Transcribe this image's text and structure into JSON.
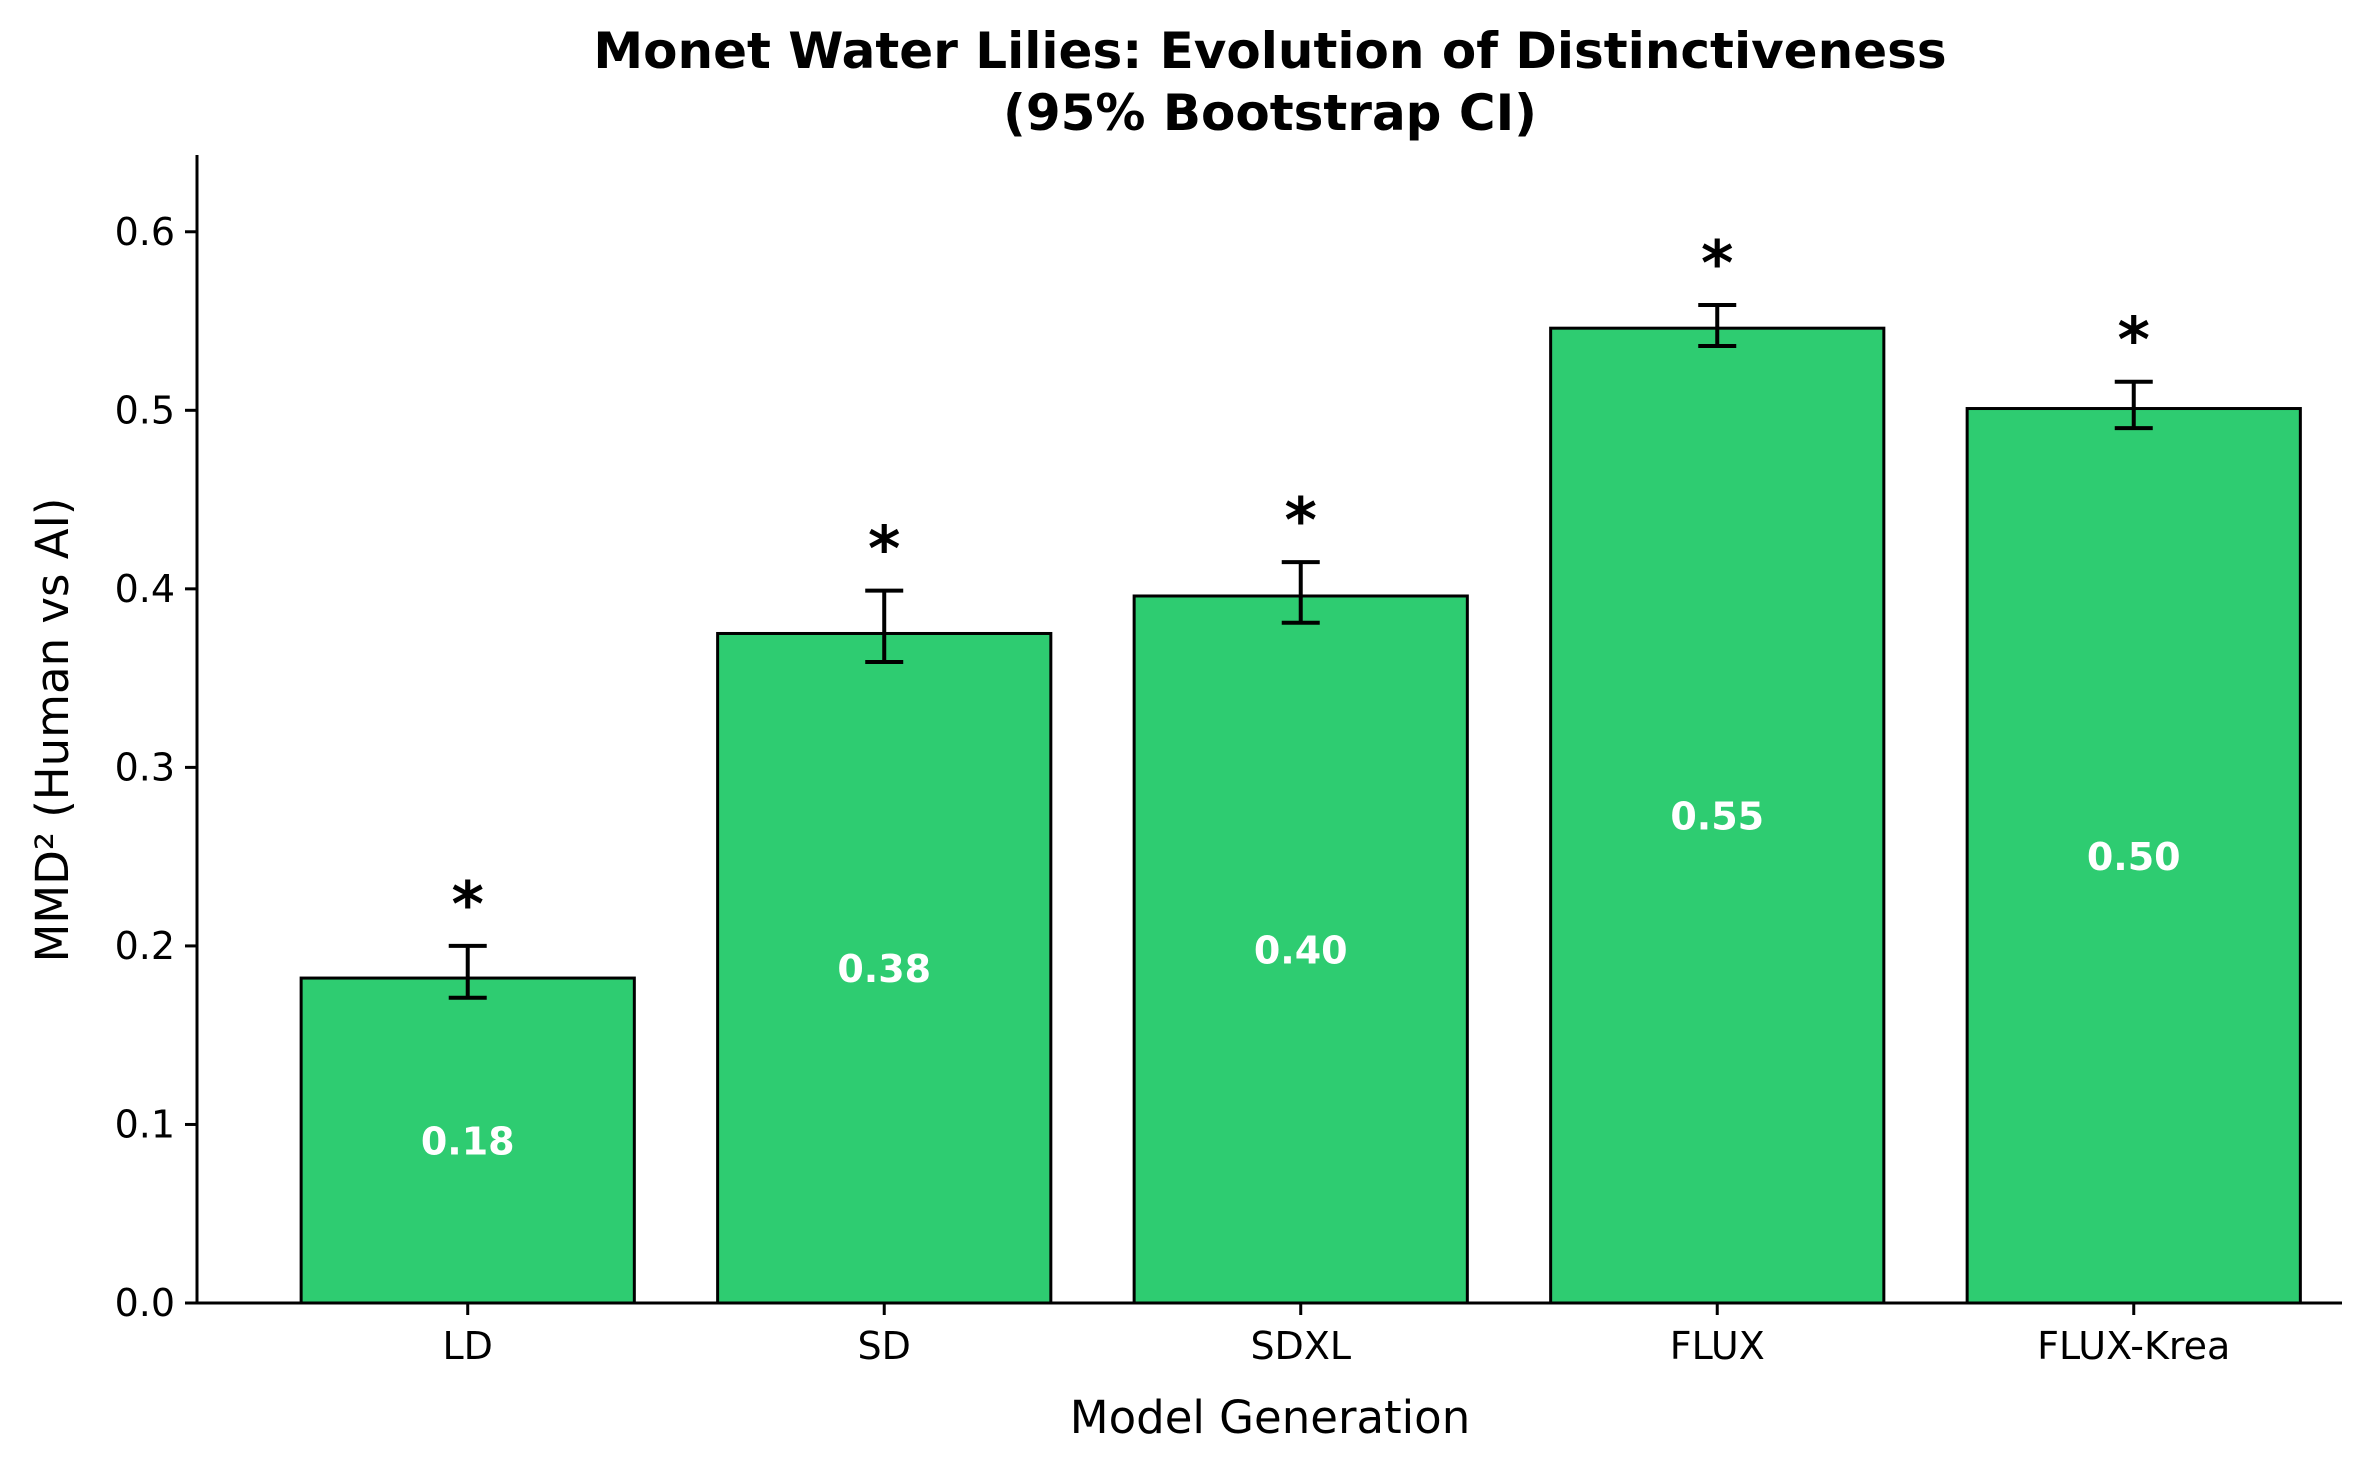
{
  "chart_data": {
    "type": "bar",
    "title": "Monet Water Lilies: Evolution of Distinctiveness",
    "subtitle": "(95% Bootstrap CI)",
    "xlabel": "Model Generation",
    "ylabel": "MMD² (Human vs AI)",
    "ylim": [
      0,
      0.643
    ],
    "yticks": [
      "0.0",
      "0.1",
      "0.2",
      "0.3",
      "0.4",
      "0.5",
      "0.6"
    ],
    "categories": [
      "LD",
      "SD",
      "SDXL",
      "FLUX",
      "FLUX-Krea"
    ],
    "values": [
      0.182,
      0.375,
      0.396,
      0.546,
      0.501
    ],
    "value_labels": [
      "0.18",
      "0.38",
      "0.40",
      "0.55",
      "0.50"
    ],
    "ci_lower": [
      0.171,
      0.359,
      0.381,
      0.536,
      0.49
    ],
    "ci_upper": [
      0.2,
      0.399,
      0.415,
      0.559,
      0.516
    ],
    "significance": [
      "*",
      "*",
      "*",
      "*",
      "*"
    ],
    "bar_color": "#2ecc71",
    "edge_color": "#000000",
    "value_label_color": "#ffffff"
  }
}
